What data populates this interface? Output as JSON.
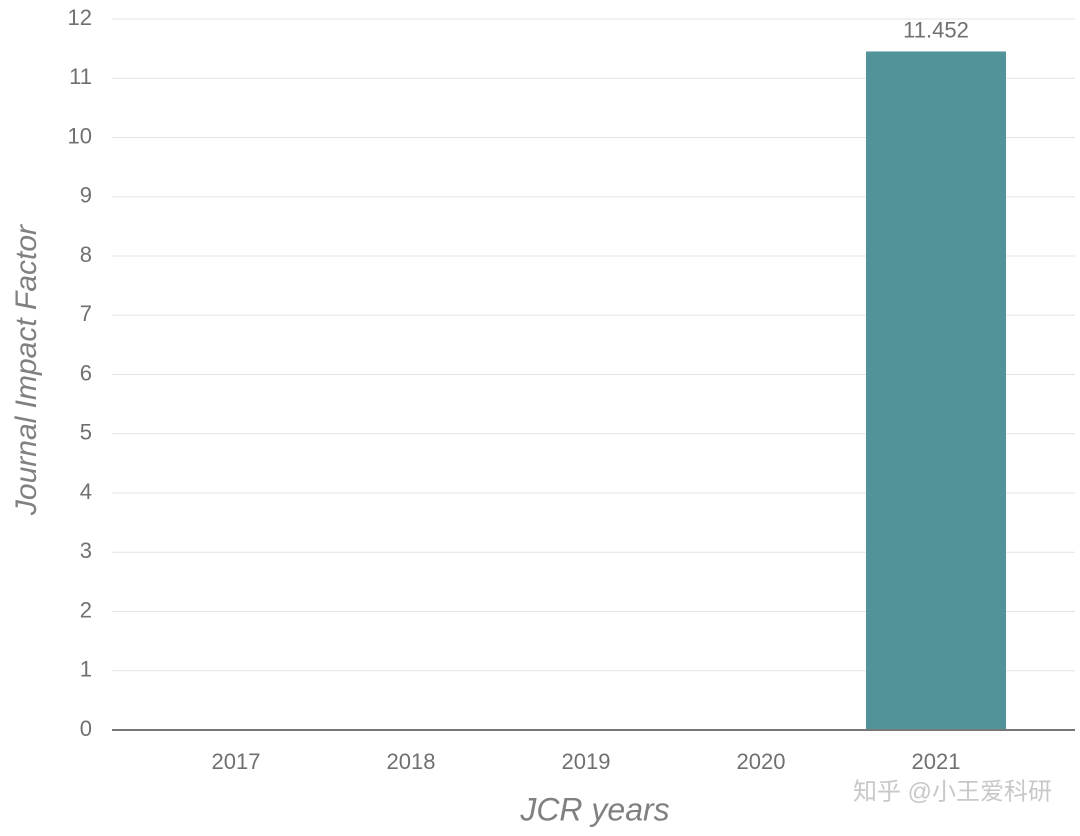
{
  "chart_data": {
    "type": "bar",
    "x_label": "JCR years",
    "y_label": "Journal Impact Factor",
    "categories": [
      "2017",
      "2018",
      "2019",
      "2020",
      "2021"
    ],
    "values": [
      null,
      null,
      null,
      null,
      11.452
    ],
    "color": "#52939a",
    "ylim": [
      0,
      12
    ],
    "yticks": [
      0,
      1,
      2,
      3,
      4,
      5,
      6,
      7,
      8,
      9,
      10,
      11,
      12
    ],
    "grid": true,
    "watermark": "知乎 @小王爱科研"
  }
}
